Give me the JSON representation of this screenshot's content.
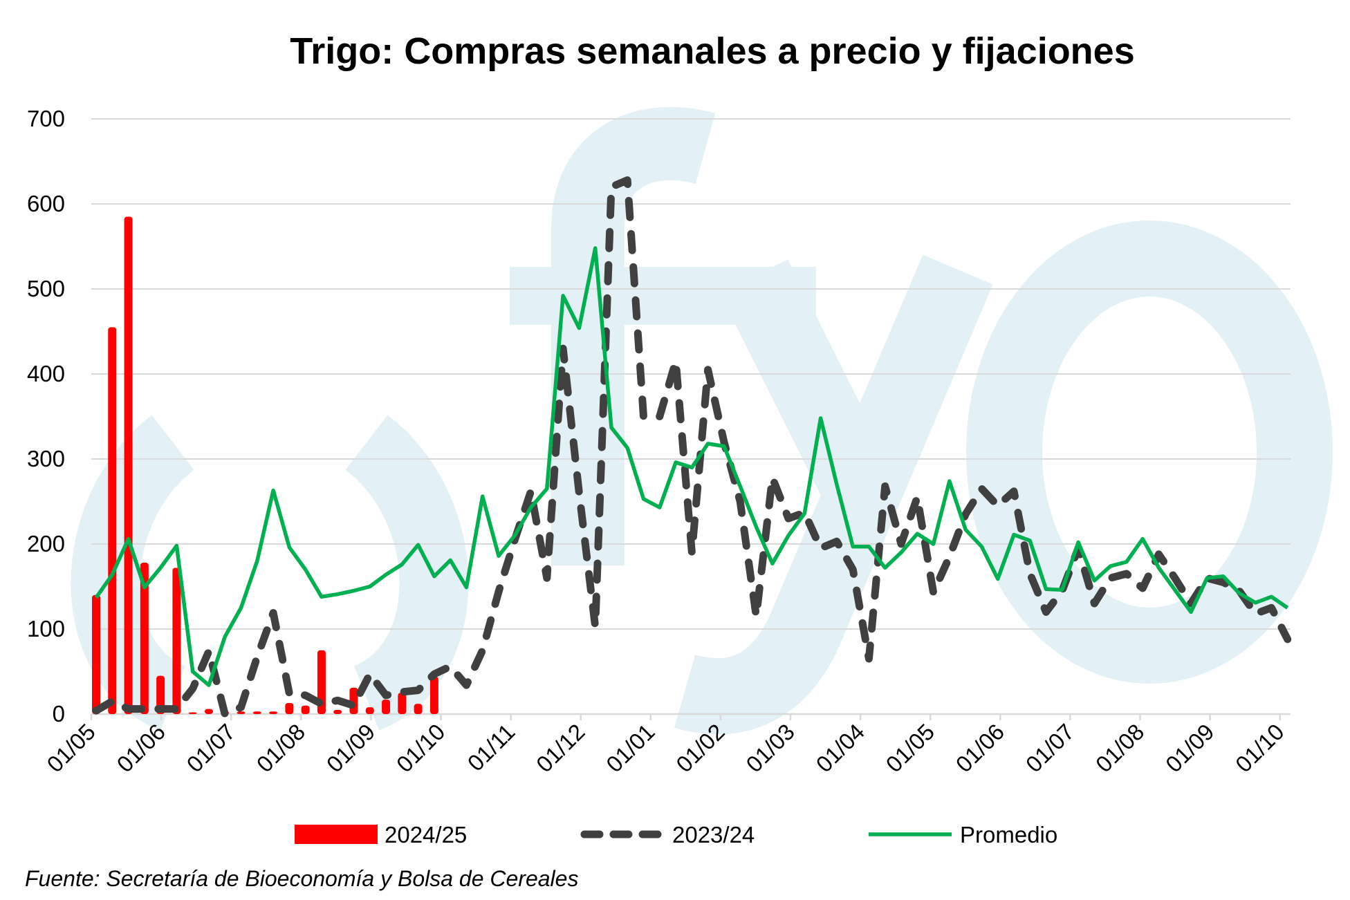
{
  "colors": {
    "red": "#ff0000",
    "dashed": "#404040",
    "green": "#00b050",
    "grid": "#d9d9d9",
    "watermark": "#e3f1f6"
  },
  "watermark": "ofyo",
  "source": "Fuente: Secretaría de Bioeconomía y Bolsa de Cereales",
  "chart_data": {
    "type": "bar+line",
    "title": "Trigo: Compras semanales a precio y fijaciones",
    "xlabel": "",
    "ylabel": "",
    "ylim": [
      0,
      700
    ],
    "yticks": [
      0,
      100,
      200,
      300,
      400,
      500,
      600,
      700
    ],
    "grid": true,
    "legend_position": "bottom",
    "x_unit": "weeks since 01/05",
    "xtick_labels": [
      "01/05",
      "01/06",
      "01/07",
      "01/08",
      "01/09",
      "01/10",
      "01/11",
      "01/12",
      "01/01",
      "01/02",
      "01/03",
      "01/04",
      "01/05",
      "01/06",
      "01/07",
      "01/08",
      "01/09",
      "01/10"
    ],
    "series": [
      {
        "name": "2024/25",
        "kind": "bar",
        "values": [
          140,
          455,
          585,
          178,
          45,
          172,
          2,
          6,
          3,
          3,
          3,
          3,
          13,
          10,
          75,
          5,
          31,
          8,
          17,
          25,
          12,
          44
        ]
      },
      {
        "name": "2023/24",
        "kind": "dashed-line",
        "values": [
          4,
          15,
          6,
          6,
          6,
          6,
          30,
          74,
          0,
          8,
          67,
          119,
          24,
          22,
          12,
          16,
          10,
          47,
          22,
          26,
          28,
          47,
          56,
          34,
          75,
          144,
          205,
          262,
          160,
          430,
          260,
          103,
          620,
          628,
          350,
          350,
          415,
          190,
          405,
          320,
          250,
          115,
          278,
          230,
          237,
          195,
          203,
          170,
          65,
          268,
          200,
          255,
          143,
          185,
          235,
          265,
          245,
          262,
          165,
          120,
          145,
          195,
          130,
          160,
          165,
          148,
          188,
          160,
          130,
          160,
          155,
          145,
          118,
          125,
          88
        ]
      },
      {
        "name": "Promedio",
        "kind": "line",
        "values": [
          137,
          164,
          206,
          149,
          172,
          198,
          50,
          34,
          91,
          125,
          180,
          263,
          196,
          170,
          138,
          141,
          145,
          150,
          164,
          176,
          199,
          162,
          181,
          149,
          256,
          186,
          210,
          243,
          265,
          492,
          454,
          548,
          337,
          313,
          253,
          243,
          296,
          290,
          318,
          315,
          268,
          220,
          177,
          210,
          236,
          348,
          270,
          197,
          197,
          172,
          190,
          212,
          200,
          274,
          217,
          197,
          159,
          211,
          204,
          147,
          146,
          202,
          157,
          174,
          179,
          206,
          172,
          146,
          120,
          160,
          162,
          142,
          131,
          138,
          125
        ]
      }
    ]
  }
}
